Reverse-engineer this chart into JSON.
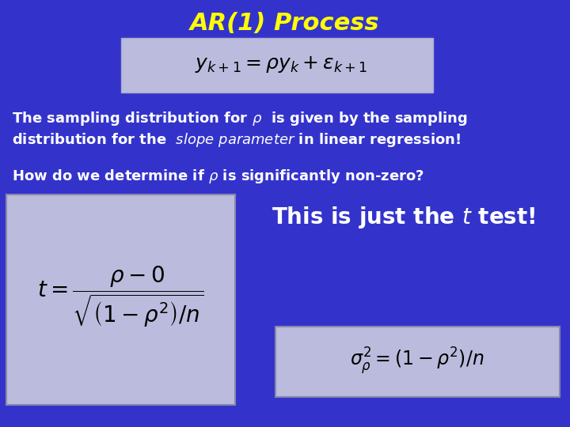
{
  "background_color": "#3333CC",
  "title": "AR(1) Process",
  "title_color": "#FFFF00",
  "title_fontsize": 22,
  "title_style": "italic",
  "title_weight": "bold",
  "box_color": "#BBBBDD",
  "text_color": "#FFFFFF",
  "body_fontsize": 13,
  "eq1_latex": "$y_{k+1} = \\rho y_k + \\varepsilon_{k+1}$",
  "line1": "The sampling distribution for $\\rho$  is given by the sampling",
  "line2": "distribution for the  $\\mathit{slope\\ parameter}$ in linear regression!",
  "line3": "How do we determine if $\\rho$ is significantly non-zero?",
  "t_formula": "$t=\\dfrac{\\rho-0}{\\sqrt{\\left(1-\\rho^2\\right)/n}}$",
  "sigma_formula": "$\\sigma^2_{\\rho}=(1-\\rho^2)/n$"
}
